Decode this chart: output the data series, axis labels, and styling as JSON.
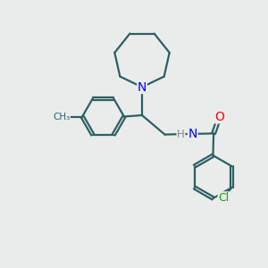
{
  "bg_color": "#eaecec",
  "bond_color": "#2d6060",
  "N_color": "#0000ff",
  "O_color": "#ff0000",
  "Cl_color": "#00aa00",
  "line_width": 1.6,
  "font_size_atom": 9,
  "fig_size": [
    3.0,
    3.0
  ],
  "dpi": 100,
  "xlim": [
    0,
    10
  ],
  "ylim": [
    0,
    10
  ]
}
